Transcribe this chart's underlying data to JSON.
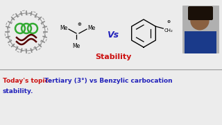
{
  "bg_color": "#ececec",
  "vs_label": "Vs",
  "vs_color": "#2222bb",
  "stability_label": "Stability",
  "stability_color": "#cc1111",
  "title_red": "Today's topic: ",
  "title_blue": "Tertiary (3°) vs Benzylic carbocation",
  "title_blue2": "stability.",
  "title_red_color": "#cc1111",
  "title_blue_color": "#2222bb",
  "line_color": "#999999",
  "logo_gear_color": "#888888",
  "logo_ring_color": "#33aa33",
  "logo_wave_color": "#550000"
}
